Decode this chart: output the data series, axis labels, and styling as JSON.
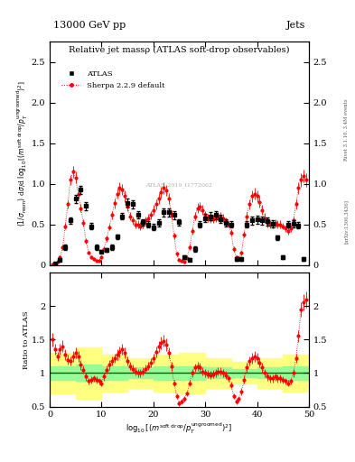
{
  "title": "Relative jet massρ (ATLAS soft-drop observables)",
  "top_label_left": "13000 GeV pp",
  "top_label_right": "Jets",
  "watermark": "ATLAS_2019_I1772062",
  "ylabel_main": "(1/σ$_{resm}$) dσ/d log$_{10}$[(m$^{soft drop}$/p$_T^{ungroomed}$)$^2$]",
  "ylabel_ratio": "Ratio to ATLAS",
  "xlabel": "log$_{10}$[(m$^{soft drop}$/p$_T^{ungroomed}$)$^2$]",
  "xlim": [
    0,
    50
  ],
  "ylim_main": [
    0,
    2.75
  ],
  "ylim_ratio": [
    0.5,
    2.5
  ],
  "atlas_x": [
    1,
    2,
    3,
    4,
    5,
    6,
    7,
    8,
    9,
    10,
    11,
    12,
    13,
    14,
    15,
    16,
    17,
    18,
    19,
    20,
    21,
    22,
    23,
    24,
    25,
    26,
    27,
    28,
    29,
    30,
    31,
    32,
    33,
    34,
    35,
    36,
    37,
    38,
    39,
    40,
    41,
    42,
    43,
    44,
    45,
    46,
    47,
    48,
    49
  ],
  "atlas_y": [
    0.02,
    0.07,
    0.22,
    0.55,
    0.82,
    0.93,
    0.73,
    0.48,
    0.22,
    0.17,
    0.19,
    0.22,
    0.35,
    0.6,
    0.77,
    0.75,
    0.62,
    0.53,
    0.5,
    0.47,
    0.52,
    0.65,
    0.65,
    0.62,
    0.53,
    0.1,
    0.07,
    0.2,
    0.5,
    0.58,
    0.6,
    0.62,
    0.57,
    0.52,
    0.5,
    0.08,
    0.08,
    0.5,
    0.55,
    0.56,
    0.55,
    0.54,
    0.51,
    0.34,
    0.1,
    0.5,
    0.51,
    0.49,
    0.08
  ],
  "atlas_yerr": [
    0.01,
    0.02,
    0.03,
    0.04,
    0.05,
    0.05,
    0.05,
    0.04,
    0.03,
    0.02,
    0.02,
    0.03,
    0.03,
    0.04,
    0.05,
    0.05,
    0.04,
    0.04,
    0.04,
    0.04,
    0.04,
    0.05,
    0.05,
    0.05,
    0.04,
    0.02,
    0.02,
    0.03,
    0.04,
    0.05,
    0.05,
    0.05,
    0.05,
    0.04,
    0.04,
    0.02,
    0.02,
    0.04,
    0.05,
    0.05,
    0.05,
    0.05,
    0.04,
    0.03,
    0.02,
    0.04,
    0.04,
    0.04,
    0.02
  ],
  "sherpa_x": [
    0.5,
    1.0,
    1.5,
    2.0,
    2.5,
    3.0,
    3.5,
    4.0,
    4.5,
    5.0,
    5.5,
    6.0,
    6.5,
    7.0,
    7.5,
    8.0,
    8.5,
    9.0,
    9.5,
    10.0,
    10.5,
    11.0,
    11.5,
    12.0,
    12.5,
    13.0,
    13.5,
    14.0,
    14.5,
    15.0,
    15.5,
    16.0,
    16.5,
    17.0,
    17.5,
    18.0,
    18.5,
    19.0,
    19.5,
    20.0,
    20.5,
    21.0,
    21.5,
    22.0,
    22.5,
    23.0,
    23.5,
    24.0,
    24.5,
    25.0,
    25.5,
    26.0,
    26.5,
    27.0,
    27.5,
    28.0,
    28.5,
    29.0,
    29.5,
    30.0,
    30.5,
    31.0,
    31.5,
    32.0,
    32.5,
    33.0,
    33.5,
    34.0,
    34.5,
    35.0,
    35.5,
    36.0,
    36.5,
    37.0,
    37.5,
    38.0,
    38.5,
    39.0,
    39.5,
    40.0,
    40.5,
    41.0,
    41.5,
    42.0,
    42.5,
    43.0,
    43.5,
    44.0,
    44.5,
    45.0,
    45.5,
    46.0,
    46.5,
    47.0,
    47.5,
    48.0,
    48.5,
    49.0,
    49.5
  ],
  "sherpa_y": [
    0.01,
    0.02,
    0.04,
    0.1,
    0.22,
    0.48,
    0.75,
    1.05,
    1.15,
    1.08,
    0.88,
    0.7,
    0.52,
    0.3,
    0.16,
    0.1,
    0.08,
    0.06,
    0.06,
    0.1,
    0.2,
    0.33,
    0.47,
    0.62,
    0.76,
    0.88,
    0.95,
    0.93,
    0.85,
    0.72,
    0.6,
    0.55,
    0.5,
    0.5,
    0.48,
    0.5,
    0.55,
    0.58,
    0.62,
    0.68,
    0.75,
    0.82,
    0.9,
    0.95,
    0.92,
    0.82,
    0.62,
    0.36,
    0.14,
    0.07,
    0.05,
    0.04,
    0.09,
    0.22,
    0.42,
    0.6,
    0.7,
    0.72,
    0.68,
    0.62,
    0.58,
    0.57,
    0.57,
    0.58,
    0.6,
    0.6,
    0.58,
    0.55,
    0.5,
    0.4,
    0.2,
    0.1,
    0.09,
    0.15,
    0.38,
    0.6,
    0.75,
    0.85,
    0.88,
    0.85,
    0.78,
    0.68,
    0.58,
    0.52,
    0.5,
    0.5,
    0.52,
    0.5,
    0.5,
    0.48,
    0.45,
    0.42,
    0.45,
    0.55,
    0.75,
    0.95,
    1.05,
    1.1,
    1.05
  ],
  "sherpa_yerr": [
    0.005,
    0.01,
    0.015,
    0.02,
    0.03,
    0.04,
    0.05,
    0.06,
    0.07,
    0.07,
    0.06,
    0.05,
    0.04,
    0.03,
    0.02,
    0.02,
    0.02,
    0.02,
    0.02,
    0.02,
    0.03,
    0.04,
    0.04,
    0.05,
    0.06,
    0.06,
    0.07,
    0.07,
    0.07,
    0.06,
    0.05,
    0.05,
    0.05,
    0.05,
    0.05,
    0.05,
    0.05,
    0.05,
    0.05,
    0.06,
    0.06,
    0.07,
    0.07,
    0.07,
    0.07,
    0.07,
    0.06,
    0.04,
    0.03,
    0.02,
    0.02,
    0.02,
    0.02,
    0.03,
    0.04,
    0.05,
    0.06,
    0.06,
    0.06,
    0.05,
    0.05,
    0.05,
    0.05,
    0.05,
    0.05,
    0.05,
    0.05,
    0.04,
    0.04,
    0.04,
    0.03,
    0.02,
    0.02,
    0.03,
    0.04,
    0.05,
    0.06,
    0.07,
    0.07,
    0.07,
    0.07,
    0.06,
    0.06,
    0.05,
    0.05,
    0.05,
    0.05,
    0.05,
    0.05,
    0.04,
    0.04,
    0.04,
    0.04,
    0.05,
    0.06,
    0.07,
    0.08,
    0.08,
    0.08
  ],
  "ratio_x": [
    0.5,
    1.0,
    1.5,
    2.0,
    2.5,
    3.0,
    3.5,
    4.0,
    4.5,
    5.0,
    5.5,
    6.0,
    6.5,
    7.0,
    7.5,
    8.0,
    8.5,
    9.0,
    9.5,
    10.0,
    10.5,
    11.0,
    11.5,
    12.0,
    12.5,
    13.0,
    13.5,
    14.0,
    14.5,
    15.0,
    15.5,
    16.0,
    16.5,
    17.0,
    17.5,
    18.0,
    18.5,
    19.0,
    19.5,
    20.0,
    20.5,
    21.0,
    21.5,
    22.0,
    22.5,
    23.0,
    23.5,
    24.0,
    24.5,
    25.0,
    25.5,
    26.0,
    26.5,
    27.0,
    27.5,
    28.0,
    28.5,
    29.0,
    29.5,
    30.0,
    30.5,
    31.0,
    31.5,
    32.0,
    32.5,
    33.0,
    33.5,
    34.0,
    34.5,
    35.0,
    35.5,
    36.0,
    36.5,
    37.0,
    37.5,
    38.0,
    38.5,
    39.0,
    39.5,
    40.0,
    40.5,
    41.0,
    41.5,
    42.0,
    42.5,
    43.0,
    43.5,
    44.0,
    44.5,
    45.0,
    45.5,
    46.0,
    46.5,
    47.0,
    47.5,
    48.0,
    48.5,
    49.0,
    49.5
  ],
  "ratio_y": [
    1.5,
    1.35,
    1.25,
    1.35,
    1.4,
    1.28,
    1.2,
    1.18,
    1.25,
    1.3,
    1.25,
    1.12,
    1.05,
    0.95,
    0.88,
    0.9,
    0.92,
    0.9,
    0.88,
    0.85,
    0.95,
    1.05,
    1.12,
    1.18,
    1.22,
    1.28,
    1.32,
    1.35,
    1.3,
    1.18,
    1.1,
    1.06,
    1.02,
    1.0,
    1.0,
    1.02,
    1.06,
    1.1,
    1.15,
    1.22,
    1.32,
    1.4,
    1.45,
    1.48,
    1.42,
    1.3,
    1.1,
    0.85,
    0.65,
    0.55,
    0.58,
    0.62,
    0.7,
    0.85,
    1.0,
    1.08,
    1.1,
    1.08,
    1.02,
    1.0,
    0.98,
    0.97,
    0.98,
    1.0,
    1.02,
    1.02,
    1.0,
    0.97,
    0.92,
    0.82,
    0.65,
    0.58,
    0.62,
    0.72,
    0.9,
    1.08,
    1.18,
    1.22,
    1.25,
    1.22,
    1.15,
    1.08,
    1.0,
    0.95,
    0.92,
    0.92,
    0.95,
    0.92,
    0.92,
    0.9,
    0.88,
    0.85,
    0.88,
    1.0,
    1.22,
    1.55,
    1.95,
    2.05,
    2.1
  ],
  "ratio_yerr": [
    0.1,
    0.08,
    0.07,
    0.08,
    0.09,
    0.08,
    0.07,
    0.07,
    0.08,
    0.08,
    0.08,
    0.07,
    0.06,
    0.06,
    0.05,
    0.05,
    0.05,
    0.05,
    0.05,
    0.05,
    0.06,
    0.06,
    0.07,
    0.07,
    0.07,
    0.08,
    0.08,
    0.08,
    0.08,
    0.07,
    0.06,
    0.06,
    0.06,
    0.06,
    0.06,
    0.06,
    0.06,
    0.06,
    0.07,
    0.07,
    0.08,
    0.08,
    0.09,
    0.09,
    0.09,
    0.08,
    0.07,
    0.05,
    0.04,
    0.04,
    0.04,
    0.04,
    0.04,
    0.05,
    0.06,
    0.06,
    0.07,
    0.07,
    0.06,
    0.06,
    0.06,
    0.06,
    0.06,
    0.06,
    0.06,
    0.06,
    0.06,
    0.06,
    0.05,
    0.05,
    0.04,
    0.04,
    0.04,
    0.05,
    0.06,
    0.07,
    0.07,
    0.08,
    0.08,
    0.08,
    0.07,
    0.07,
    0.06,
    0.06,
    0.06,
    0.06,
    0.06,
    0.06,
    0.06,
    0.05,
    0.05,
    0.05,
    0.05,
    0.06,
    0.07,
    0.09,
    0.11,
    0.12,
    0.12
  ],
  "green_band_edges": [
    0,
    5,
    10,
    15,
    20,
    25,
    30,
    35,
    40,
    45,
    50
  ],
  "green_ylo": [
    0.9,
    0.88,
    0.9,
    0.92,
    0.9,
    0.9,
    0.92,
    0.94,
    0.92,
    0.9
  ],
  "green_yhi": [
    1.1,
    1.12,
    1.1,
    1.08,
    1.1,
    1.1,
    1.08,
    1.06,
    1.08,
    1.1
  ],
  "yellow_band_edges": [
    0,
    5,
    10,
    15,
    20,
    25,
    30,
    35,
    40,
    45,
    50
  ],
  "yellow_ylo": [
    0.7,
    0.62,
    0.72,
    0.78,
    0.72,
    0.7,
    0.78,
    0.84,
    0.78,
    0.72
  ],
  "yellow_yhi": [
    1.3,
    1.38,
    1.28,
    1.22,
    1.28,
    1.3,
    1.22,
    1.16,
    1.22,
    1.28
  ],
  "legend_atlas": "ATLAS",
  "legend_sherpa": "Sherpa 2.2.9 default",
  "atlas_color": "black",
  "sherpa_color": "red",
  "green_color": "#98FB98",
  "yellow_color": "#FFFF80",
  "background_color": "white",
  "yticks_main": [
    0,
    0.5,
    1.0,
    1.5,
    2.0,
    2.5
  ],
  "yticks_ratio": [
    0.5,
    1.0,
    1.5,
    2.0
  ],
  "xticks": [
    0,
    10,
    20,
    30,
    40,
    50
  ]
}
